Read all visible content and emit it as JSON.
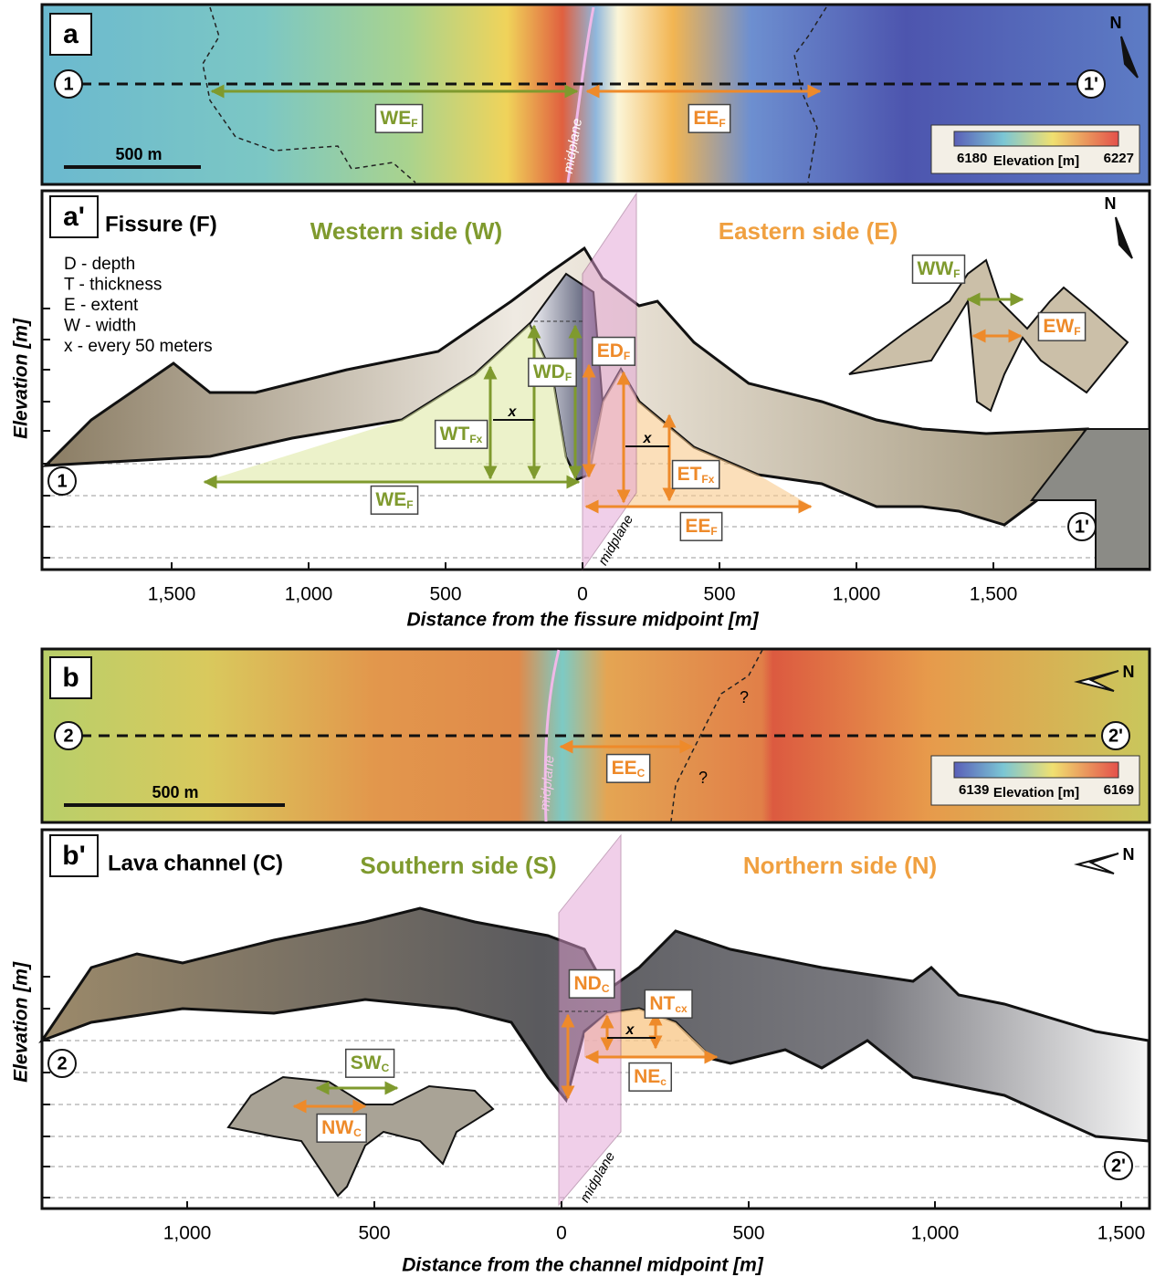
{
  "panel_a": {
    "label": "a",
    "start": "1",
    "end": "1'",
    "west_extent": {
      "main": "WE",
      "sub": "F"
    },
    "east_extent": {
      "main": "EE",
      "sub": "F"
    },
    "midplane": "midplane",
    "scale_bar": "500 m",
    "legend": {
      "min": "6180",
      "title": "Elevation [m]",
      "max": "6227"
    },
    "north": "N"
  },
  "panel_a_prime": {
    "label": "a'",
    "title": "Fissure (F)",
    "west_title": "Western side (W)",
    "east_title": "Eastern side (E)",
    "key": [
      "D - depth",
      "T - thickness",
      "E - extent",
      "W - width",
      "x - every 50 meters"
    ],
    "y_axis_label": "Elevation [m]",
    "start": "1",
    "end": "1'",
    "interval_mark": "x",
    "midplane": "midplane",
    "north": "N",
    "annotations": [
      {
        "main": "WD",
        "sub": "F"
      },
      {
        "main": "WT",
        "sub": "Fx"
      },
      {
        "main": "WE",
        "sub": "F"
      },
      {
        "main": "ED",
        "sub": "F"
      },
      {
        "main": "ET",
        "sub": "Fx"
      },
      {
        "main": "EE",
        "sub": "F"
      },
      {
        "main": "WW",
        "sub": "F"
      },
      {
        "main": "EW",
        "sub": "F"
      }
    ],
    "x_ticks": [
      "1,500",
      "1,000",
      "500",
      "0",
      "500",
      "1,000",
      "1,500"
    ],
    "x_axis_label": "Distance from the fissure midpoint [m]"
  },
  "panel_b": {
    "label": "b",
    "start": "2",
    "end": "2'",
    "east_extent": {
      "main": "EE",
      "sub": "C"
    },
    "uncertain": "?",
    "midplane": "midplane",
    "scale_bar": "500 m",
    "legend": {
      "min": "6139",
      "title": "Elevation [m]",
      "max": "6169"
    },
    "north": "N"
  },
  "panel_b_prime": {
    "label": "b'",
    "title": "Lava channel (C)",
    "south_title": "Southern side (S)",
    "north_title": "Northern side (N)",
    "y_axis_label": "Elevation [m]",
    "start": "2",
    "end": "2'",
    "interval_mark": "x",
    "midplane": "midplane",
    "north": "N",
    "annotations": [
      {
        "main": "ND",
        "sub": "C"
      },
      {
        "main": "NT",
        "sub": "cx"
      },
      {
        "main": "NE",
        "sub": "c"
      },
      {
        "main": "SW",
        "sub": "C"
      },
      {
        "main": "NW",
        "sub": "C"
      }
    ],
    "x_ticks": [
      "1,000",
      "500",
      "0",
      "500",
      "1,000",
      "1,500"
    ],
    "x_axis_label": "Distance from the channel midpoint [m]"
  }
}
